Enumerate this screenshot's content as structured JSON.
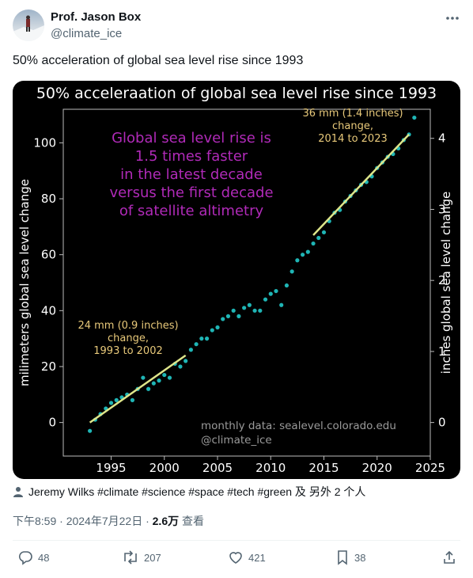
{
  "tweet": {
    "display_name": "Prof. Jason Box",
    "handle": "@climate_ice",
    "text": "50% acceleration of global sea level rise since 1993",
    "tags_line": "Jeremy Wilks #climate #science #space #tech #green 及 另外 2 个人",
    "timestamp": "下午8:59 · 2024年7月22日 · ",
    "views_count": "2.6万",
    "views_label": " 查看"
  },
  "actions": {
    "replies": "48",
    "reposts": "207",
    "likes": "421",
    "bookmarks": "38"
  },
  "chart_data": {
    "type": "scatter",
    "title": "50% acceleraation of global sea level rise since 1993",
    "ylabel": "milimeters global sea level change",
    "ylabel_right": "inches global sea level change",
    "xlim": [
      1990.5,
      2025
    ],
    "ylim": [
      -12,
      112
    ],
    "x_ticks": [
      1995,
      2000,
      2005,
      2010,
      2015,
      2020,
      2025
    ],
    "x_tick_labels": [
      "1995",
      "2000",
      "2005",
      "2010",
      "2015",
      "2020",
      "2025"
    ],
    "y_ticks": [
      0,
      20,
      40,
      60,
      80,
      100
    ],
    "y_tick_labels": [
      "0",
      "20",
      "40",
      "60",
      "80",
      "100"
    ],
    "y_right_ticks_inches": [
      0,
      1,
      2,
      3,
      4
    ],
    "y_right_tick_labels": [
      "0",
      "1",
      "2",
      "3",
      "4"
    ],
    "grid": false,
    "point_color": "#1fb5b5",
    "trend_color": "#dde58a",
    "monthly_series": {
      "x": [
        1993.0,
        1993.5,
        1994.0,
        1994.5,
        1995.0,
        1995.5,
        1996.0,
        1996.5,
        1997.0,
        1997.5,
        1998.0,
        1998.5,
        1999.0,
        1999.5,
        2000.0,
        2000.5,
        2001.0,
        2001.5,
        2002.0,
        2002.5,
        2003.0,
        2003.5,
        2004.0,
        2004.5,
        2005.0,
        2005.5,
        2006.0,
        2006.5,
        2007.0,
        2007.5,
        2008.0,
        2008.5,
        2009.0,
        2009.5,
        2010.0,
        2010.5,
        2011.0,
        2011.5,
        2012.0,
        2012.5,
        2013.0,
        2013.5,
        2014.0,
        2014.5,
        2015.0,
        2015.5,
        2016.0,
        2016.5,
        2017.0,
        2017.5,
        2018.0,
        2018.5,
        2019.0,
        2019.5,
        2020.0,
        2020.5,
        2021.0,
        2021.5,
        2022.0,
        2022.5,
        2023.0,
        2023.5
      ],
      "y": [
        -3,
        1,
        3,
        5,
        7,
        8,
        9,
        10,
        8,
        12,
        16,
        12,
        14,
        15,
        17,
        16,
        21,
        20,
        22,
        26,
        28,
        30,
        30,
        33,
        34,
        37,
        38,
        40,
        38,
        41,
        42,
        40,
        40,
        44,
        46,
        47,
        42,
        49,
        54,
        58,
        60,
        61,
        64,
        66,
        68,
        72,
        75,
        76,
        79,
        81,
        83,
        85,
        86,
        88,
        91,
        93,
        95,
        96,
        98,
        101,
        103,
        109
      ]
    },
    "trend_lines": [
      {
        "label": "24 mm (0.9 inches) change, 1993 to 2002",
        "x": [
          1993,
          2002
        ],
        "y": [
          0,
          24
        ]
      },
      {
        "label": "36 mm (1.4 inches) change, 2014 to 2023",
        "x": [
          2014,
          2023
        ],
        "y": [
          67,
          103
        ]
      }
    ],
    "annotations": {
      "headline": [
        "Global sea level rise is",
        "1.5 times faster",
        "in the latest decade",
        "versus the first decade",
        "of satellite altimetry"
      ],
      "early_change": [
        "24 mm (0.9 inches)",
        "change,",
        "1993 to 2002"
      ],
      "late_change": [
        "36 mm (1.4 inches)",
        "change,",
        "2014 to 2023"
      ],
      "source": "monthly data: sealevel.colorado.edu",
      "credit": "@climate_ice"
    },
    "colors": {
      "headline": "#b02ab8",
      "change_labels": "#e8c97a",
      "source": "#9a9a9a"
    }
  }
}
